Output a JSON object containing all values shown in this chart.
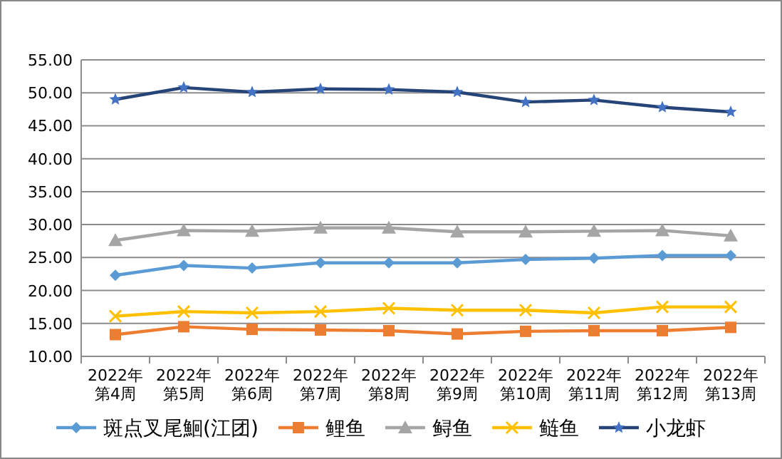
{
  "chart_data": {
    "type": "line",
    "categories": [
      "2022年第4周",
      "2022年第5周",
      "2022年第6周",
      "2022年第7周",
      "2022年第8周",
      "2022年第9周",
      "2022年第10周",
      "2022年第11周",
      "2022年第12周",
      "2022年第13周"
    ],
    "series": [
      {
        "name": "斑点叉尾鮰(江团)",
        "color": "#5b9bd5",
        "marker": "diamond",
        "values": [
          22.3,
          23.8,
          23.4,
          24.2,
          24.2,
          24.2,
          24.7,
          24.9,
          25.3,
          25.3
        ]
      },
      {
        "name": "鲤鱼",
        "color": "#ed7d31",
        "marker": "square",
        "values": [
          13.3,
          14.5,
          14.1,
          14.0,
          13.9,
          13.4,
          13.8,
          13.9,
          13.9,
          14.4
        ]
      },
      {
        "name": "鲟鱼",
        "color": "#a5a5a5",
        "marker": "triangle",
        "values": [
          27.6,
          29.1,
          29.0,
          29.5,
          29.5,
          28.9,
          28.9,
          29.0,
          29.1,
          28.3
        ]
      },
      {
        "name": "鲢鱼",
        "color": "#ffc000",
        "marker": "cross",
        "values": [
          16.1,
          16.8,
          16.6,
          16.8,
          17.3,
          17.0,
          17.0,
          16.6,
          17.5,
          17.5
        ]
      },
      {
        "name": "小龙虾",
        "color": "#264478",
        "marker": "star",
        "values": [
          49.0,
          50.8,
          50.1,
          50.6,
          50.5,
          50.1,
          48.6,
          48.9,
          47.8,
          47.1
        ]
      }
    ],
    "ylim": [
      10,
      55
    ],
    "yticks": [
      {
        "value": 10,
        "label": "10.00"
      },
      {
        "value": 15,
        "label": "15.00"
      },
      {
        "value": 20,
        "label": "20.00"
      },
      {
        "value": 25,
        "label": "25.00"
      },
      {
        "value": 30,
        "label": "30.00"
      },
      {
        "value": 35,
        "label": "35.00"
      },
      {
        "value": 40,
        "label": "40.00"
      },
      {
        "value": 45,
        "label": "45.00"
      },
      {
        "value": 50,
        "label": "50.00"
      },
      {
        "value": 55,
        "label": "55.00"
      }
    ],
    "grid": "y",
    "legend": "bottom",
    "line_style": "solid"
  }
}
